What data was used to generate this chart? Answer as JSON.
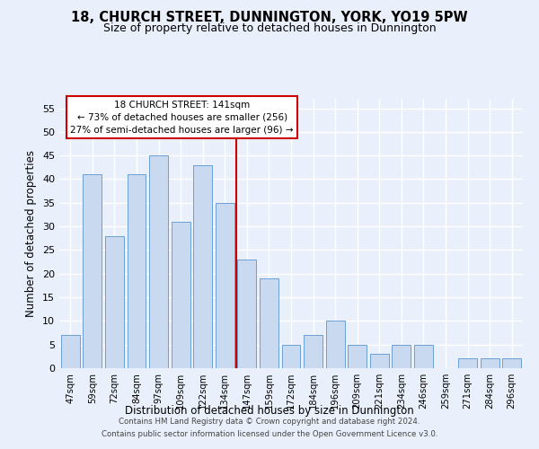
{
  "title": "18, CHURCH STREET, DUNNINGTON, YORK, YO19 5PW",
  "subtitle": "Size of property relative to detached houses in Dunnington",
  "xlabel": "Distribution of detached houses by size in Dunnington",
  "ylabel": "Number of detached properties",
  "categories": [
    "47sqm",
    "59sqm",
    "72sqm",
    "84sqm",
    "97sqm",
    "109sqm",
    "122sqm",
    "134sqm",
    "147sqm",
    "159sqm",
    "172sqm",
    "184sqm",
    "196sqm",
    "209sqm",
    "221sqm",
    "234sqm",
    "246sqm",
    "259sqm",
    "271sqm",
    "284sqm",
    "296sqm"
  ],
  "values": [
    7,
    41,
    28,
    41,
    45,
    31,
    43,
    35,
    23,
    19,
    5,
    7,
    10,
    5,
    3,
    5,
    5,
    0,
    2,
    2,
    2
  ],
  "bar_color": "#c9d9f0",
  "bar_edge_color": "#6b9fd4",
  "vline_color": "#cc0000",
  "annotation_title": "18 CHURCH STREET: 141sqm",
  "annotation_line1": "← 73% of detached houses are smaller (256)",
  "annotation_line2": "27% of semi-detached houses are larger (96) →",
  "ylim": [
    0,
    57
  ],
  "yticks": [
    0,
    5,
    10,
    15,
    20,
    25,
    30,
    35,
    40,
    45,
    50,
    55
  ],
  "background_color": "#eaf0fb",
  "plot_background": "#eaf0fb",
  "grid_color": "#ffffff",
  "footer_line1": "Contains HM Land Registry data © Crown copyright and database right 2024.",
  "footer_line2": "Contains public sector information licensed under the Open Government Licence v3.0.",
  "title_fontsize": 10.5,
  "subtitle_fontsize": 9,
  "annotation_box_color": "#ffffff",
  "annotation_box_edge": "#cc0000"
}
